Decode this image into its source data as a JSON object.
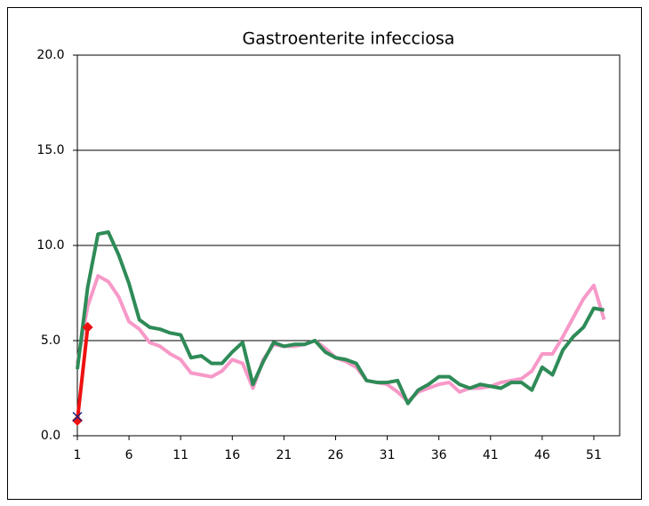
{
  "chart_data": {
    "type": "line",
    "title": "Gastroenterite infecciosa",
    "x": [
      1,
      2,
      3,
      4,
      5,
      6,
      7,
      8,
      9,
      10,
      11,
      12,
      13,
      14,
      15,
      16,
      17,
      18,
      19,
      20,
      21,
      22,
      23,
      24,
      25,
      26,
      27,
      28,
      29,
      30,
      31,
      32,
      33,
      34,
      35,
      36,
      37,
      38,
      39,
      40,
      41,
      42,
      43,
      44,
      45,
      46,
      47,
      48,
      49,
      50,
      51,
      52
    ],
    "series": [
      {
        "color": "#f799c8",
        "values": [
          3.8,
          6.8,
          8.4,
          8.1,
          7.3,
          6.0,
          5.6,
          4.9,
          4.7,
          4.3,
          4.0,
          3.3,
          3.2,
          3.1,
          3.4,
          4.0,
          3.8,
          2.5,
          4.0,
          4.8,
          4.7,
          4.7,
          4.8,
          5.0,
          4.6,
          4.1,
          3.9,
          3.6,
          2.9,
          2.8,
          2.7,
          2.3,
          1.8,
          2.3,
          2.5,
          2.7,
          2.8,
          2.3,
          2.5,
          2.5,
          2.6,
          2.8,
          2.9,
          3.0,
          3.4,
          4.3,
          4.3,
          5.2,
          6.2,
          7.2,
          7.9,
          6.1
        ]
      },
      {
        "color": "#2e8b57",
        "values": [
          3.5,
          7.8,
          10.6,
          10.7,
          9.5,
          8.0,
          6.1,
          5.7,
          5.6,
          5.4,
          5.3,
          4.1,
          4.2,
          3.8,
          3.8,
          4.4,
          4.9,
          2.7,
          3.9,
          4.9,
          4.7,
          4.8,
          4.8,
          5.0,
          4.4,
          4.1,
          4.0,
          3.8,
          2.9,
          2.8,
          2.8,
          2.9,
          1.7,
          2.4,
          2.7,
          3.1,
          3.1,
          2.7,
          2.5,
          2.7,
          2.6,
          2.5,
          2.8,
          2.8,
          2.4,
          3.6,
          3.2,
          4.5,
          5.2,
          5.7,
          6.7,
          6.6
        ]
      },
      {
        "color": "#ee1111",
        "marker": "diamond",
        "values": [
          0.8,
          5.7,
          null,
          null,
          null,
          null,
          null,
          null,
          null,
          null,
          null,
          null,
          null,
          null,
          null,
          null,
          null,
          null,
          null,
          null,
          null,
          null,
          null,
          null,
          null,
          null,
          null,
          null,
          null,
          null,
          null,
          null,
          null,
          null,
          null,
          null,
          null,
          null,
          null,
          null,
          null,
          null,
          null,
          null,
          null,
          null,
          null,
          null,
          null,
          null,
          null,
          null
        ]
      },
      {
        "color": "#1a237e",
        "marker": "x",
        "values": [
          1.0,
          null,
          null,
          null,
          null,
          null,
          null,
          null,
          null,
          null,
          null,
          null,
          null,
          null,
          null,
          null,
          null,
          null,
          null,
          null,
          null,
          null,
          null,
          null,
          null,
          null,
          null,
          null,
          null,
          null,
          null,
          null,
          null,
          null,
          null,
          null,
          null,
          null,
          null,
          null,
          null,
          null,
          null,
          null,
          null,
          null,
          null,
          null,
          null,
          null,
          null,
          null
        ]
      }
    ],
    "xlim": [
      1,
      53.5
    ],
    "xticks": [
      1,
      6,
      11,
      16,
      21,
      26,
      31,
      36,
      41,
      46,
      51
    ],
    "ylim": [
      0,
      20
    ],
    "yticks": [
      {
        "value": 0,
        "label": "0.0"
      },
      {
        "value": 5,
        "label": "5.0"
      },
      {
        "value": 10,
        "label": "10.0"
      },
      {
        "value": 15,
        "label": "15.0"
      },
      {
        "value": 20,
        "label": "20.0"
      }
    ],
    "grid": true
  }
}
